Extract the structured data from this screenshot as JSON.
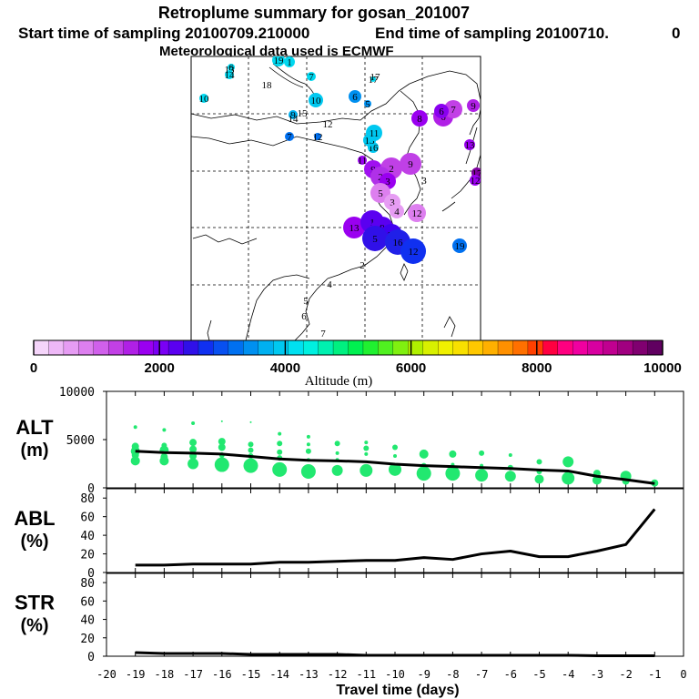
{
  "header": {
    "title": "Retroplume summary for gosan_201007",
    "start_time": "Start time of sampling 20100709.210000",
    "end_time": "End time of sampling 20100710.",
    "end_time_suffix": "0",
    "met_data": "Meteorological data used is ECMWF"
  },
  "colorbar": {
    "label": "Altitude (m)",
    "ticks": [
      0,
      2000,
      4000,
      6000,
      8000,
      10000
    ],
    "colors": [
      "#f5d5fa",
      "#eeb8f7",
      "#e69cf3",
      "#dd7fef",
      "#d060eb",
      "#c240e6",
      "#b020e6",
      "#9a00f0",
      "#7a00f5",
      "#5a00f0",
      "#3010e8",
      "#1030f0",
      "#0850f0",
      "#0070f0",
      "#0090f0",
      "#00b0f0",
      "#00c8f0",
      "#00e0f0",
      "#00f0e0",
      "#00f0b0",
      "#00f080",
      "#00f050",
      "#20f030",
      "#50f020",
      "#80f010",
      "#b0f000",
      "#d8f000",
      "#f0f000",
      "#f8e000",
      "#ffc800",
      "#ffb000",
      "#ff9000",
      "#ff7000",
      "#ff4000",
      "#ff0040",
      "#ff0080",
      "#f000a0",
      "#d800a0",
      "#c00090",
      "#a00080",
      "#800070",
      "#600060"
    ]
  },
  "map": {
    "markers": [
      {
        "label": "19",
        "color": "#00d8f0",
        "r": 7
      },
      {
        "label": "1",
        "color": "#00d8f0",
        "r": 6
      },
      {
        "label": "6",
        "color": "#00d8f0",
        "r": 4
      },
      {
        "label": "14",
        "color": "#00d8f0",
        "r": 5
      },
      {
        "label": "7",
        "color": "#00d8f0",
        "r": 5
      },
      {
        "label": "17",
        "color": "#00d8f0",
        "r": 3
      },
      {
        "label": "10",
        "color": "#00d8f0",
        "r": 5
      },
      {
        "label": "10",
        "color": "#00c8f0",
        "r": 8
      },
      {
        "label": "6",
        "color": "#0090f0",
        "r": 7
      },
      {
        "label": "5",
        "color": "#0090f0",
        "r": 4
      },
      {
        "label": "9",
        "color": "#00b0f0",
        "r": 5
      },
      {
        "label": "7",
        "color": "#0070f0",
        "r": 5
      },
      {
        "label": "12",
        "color": "#0070f0",
        "r": 4
      },
      {
        "label": "16",
        "color": "#00c8f0",
        "r": 6
      },
      {
        "label": "13",
        "color": "#00c8f0",
        "r": 7
      },
      {
        "label": "11",
        "color": "#00c8f0",
        "r": 9
      },
      {
        "label": "8",
        "color": "#9a00f0",
        "r": 9
      },
      {
        "label": "6",
        "color": "#b020e6",
        "r": 11
      },
      {
        "label": "7",
        "color": "#c240e6",
        "r": 10
      },
      {
        "label": "9",
        "color": "#b020e6",
        "r": 7
      },
      {
        "label": "10",
        "color": "#7a00f5",
        "r": 6
      },
      {
        "label": "6",
        "color": "#8a00f0",
        "r": 8
      },
      {
        "label": "13",
        "color": "#9a00f0",
        "r": 6
      },
      {
        "label": "17",
        "color": "#8000a0",
        "r": 6
      },
      {
        "label": "12",
        "color": "#9a00f0",
        "r": 6
      },
      {
        "label": "11",
        "color": "#9a00f0",
        "r": 5
      },
      {
        "label": "9",
        "color": "#a010f0",
        "r": 10
      },
      {
        "label": "2",
        "color": "#c040e6",
        "r": 12
      },
      {
        "label": "9",
        "color": "#c040e6",
        "r": 12
      },
      {
        "label": "2",
        "color": "#b030e8",
        "r": 11
      },
      {
        "label": "3",
        "color": "#9a00f0",
        "r": 9
      },
      {
        "label": "5",
        "color": "#dd7fef",
        "r": 11
      },
      {
        "label": "3",
        "color": "#e69cf3",
        "r": 9
      },
      {
        "label": "4",
        "color": "#e69cf3",
        "r": 8
      },
      {
        "label": "12",
        "color": "#dd7fef",
        "r": 10
      },
      {
        "label": "13",
        "color": "#9a00f0",
        "r": 12
      },
      {
        "label": "1",
        "color": "#5a00f0",
        "r": 13
      },
      {
        "label": "9",
        "color": "#5a00f0",
        "r": 12
      },
      {
        "label": "11",
        "color": "#4000f0",
        "r": 12
      },
      {
        "label": "5",
        "color": "#3010e8",
        "r": 14
      },
      {
        "label": "16",
        "color": "#2020e8",
        "r": 14
      },
      {
        "label": "12",
        "color": "#1030f0",
        "r": 14
      },
      {
        "label": "19",
        "color": "#0070f0",
        "r": 8
      }
    ],
    "texts": [
      {
        "label": "18",
        "color": "#00d8f0"
      },
      {
        "label": "15",
        "color": "#00d8f0"
      },
      {
        "label": "3",
        "color": "#000000"
      },
      {
        "label": "4",
        "color": "#000000"
      },
      {
        "label": "5",
        "color": "#000000"
      },
      {
        "label": "6",
        "color": "#000000"
      },
      {
        "label": "7",
        "color": "#000000"
      },
      {
        "label": "13",
        "color": "#000000"
      },
      {
        "label": "14",
        "color": "#000000"
      },
      {
        "label": "17",
        "color": "#000000"
      },
      {
        "label": "2",
        "color": "#000000"
      },
      {
        "label": "12",
        "color": "#000000"
      }
    ]
  },
  "chart_data": [
    {
      "type": "line",
      "name": "ALT",
      "ylabel": "ALT",
      "yunit": "(m)",
      "ylim": [
        0,
        10000
      ],
      "yticks": [
        0,
        5000,
        10000
      ],
      "x": [
        -19,
        -18,
        -17,
        -16,
        -15,
        -14,
        -13,
        -12,
        -11,
        -10,
        -9,
        -8,
        -7,
        -6,
        -5,
        -4,
        -3,
        -2,
        -1
      ],
      "series": [
        {
          "name": "mean altitude",
          "values": [
            3800,
            3650,
            3600,
            3500,
            3250,
            3000,
            2850,
            2800,
            2700,
            2450,
            2300,
            2200,
            2100,
            2000,
            1850,
            1750,
            1200,
            850,
            450
          ]
        }
      ],
      "scatter": [
        {
          "x": -19,
          "points": [
            [
              6300,
              2
            ],
            [
              4300,
              4
            ],
            [
              3800,
              5
            ],
            [
              3400,
              4
            ],
            [
              2800,
              5
            ]
          ]
        },
        {
          "x": -18,
          "points": [
            [
              6000,
              2
            ],
            [
              4400,
              3
            ],
            [
              3900,
              5
            ],
            [
              3200,
              4
            ],
            [
              2800,
              5
            ]
          ]
        },
        {
          "x": -17,
          "points": [
            [
              6700,
              2
            ],
            [
              4700,
              4
            ],
            [
              4000,
              4
            ],
            [
              3300,
              4
            ],
            [
              2500,
              6
            ]
          ]
        },
        {
          "x": -16,
          "points": [
            [
              6900,
              1
            ],
            [
              4800,
              4
            ],
            [
              4200,
              4
            ],
            [
              3400,
              3
            ],
            [
              2400,
              8
            ]
          ]
        },
        {
          "x": -15,
          "points": [
            [
              6800,
              1
            ],
            [
              4500,
              3
            ],
            [
              3900,
              3
            ],
            [
              3300,
              3
            ],
            [
              2300,
              8
            ]
          ]
        },
        {
          "x": -14,
          "points": [
            [
              5600,
              2
            ],
            [
              4600,
              3
            ],
            [
              3700,
              3
            ],
            [
              3100,
              3
            ],
            [
              1900,
              8
            ]
          ]
        },
        {
          "x": -13,
          "points": [
            [
              5300,
              2
            ],
            [
              4500,
              2
            ],
            [
              3800,
              3
            ],
            [
              2900,
              2
            ],
            [
              1700,
              8
            ]
          ]
        },
        {
          "x": -12,
          "points": [
            [
              4600,
              3
            ],
            [
              3600,
              2
            ],
            [
              2900,
              2
            ],
            [
              1800,
              6
            ]
          ]
        },
        {
          "x": -11,
          "points": [
            [
              4700,
              2
            ],
            [
              4100,
              3
            ],
            [
              3500,
              2
            ],
            [
              1800,
              7
            ]
          ]
        },
        {
          "x": -10,
          "points": [
            [
              4200,
              3
            ],
            [
              3300,
              2
            ],
            [
              1900,
              7
            ]
          ]
        },
        {
          "x": -9,
          "points": [
            [
              3500,
              5
            ],
            [
              2300,
              3
            ],
            [
              1500,
              8
            ]
          ]
        },
        {
          "x": -8,
          "points": [
            [
              3500,
              4
            ],
            [
              2400,
              2
            ],
            [
              1500,
              8
            ]
          ]
        },
        {
          "x": -7,
          "points": [
            [
              3600,
              3
            ],
            [
              2300,
              2
            ],
            [
              1300,
              7
            ]
          ]
        },
        {
          "x": -6,
          "points": [
            [
              3400,
              2
            ],
            [
              2100,
              3
            ],
            [
              1200,
              6
            ]
          ]
        },
        {
          "x": -5,
          "points": [
            [
              2700,
              3
            ],
            [
              1700,
              3
            ],
            [
              900,
              5
            ]
          ]
        },
        {
          "x": -4,
          "points": [
            [
              2700,
              6
            ],
            [
              1000,
              7
            ]
          ]
        },
        {
          "x": -3,
          "points": [
            [
              1500,
              4
            ],
            [
              800,
              5
            ]
          ]
        },
        {
          "x": -2,
          "points": [
            [
              1200,
              6
            ],
            [
              700,
              4
            ]
          ]
        },
        {
          "x": -1,
          "points": [
            [
              500,
              4
            ]
          ]
        }
      ]
    },
    {
      "type": "line",
      "name": "ABL",
      "ylabel": "ABL",
      "yunit": "(%)",
      "ylim": [
        0,
        90
      ],
      "yticks": [
        0,
        20,
        40,
        60,
        80
      ],
      "x": [
        -19,
        -18,
        -17,
        -16,
        -15,
        -14,
        -13,
        -12,
        -11,
        -10,
        -9,
        -8,
        -7,
        -6,
        -5,
        -4,
        -3,
        -2,
        -1
      ],
      "series": [
        {
          "name": "ABL fraction",
          "values": [
            8,
            8,
            9,
            9,
            9,
            11,
            11,
            12,
            13,
            13,
            16,
            14,
            20,
            23,
            17,
            17,
            23,
            30,
            68
          ]
        }
      ]
    },
    {
      "type": "line",
      "name": "STR",
      "ylabel": "STR",
      "yunit": "(%)",
      "ylim": [
        0,
        90
      ],
      "yticks": [
        0,
        20,
        40,
        60,
        80
      ],
      "xlabel": "Travel time (days)",
      "xticks": [
        -20,
        -19,
        -18,
        -17,
        -16,
        -15,
        -14,
        -13,
        -12,
        -11,
        -10,
        -9,
        -8,
        -7,
        -6,
        -5,
        -4,
        -3,
        -2,
        -1,
        0
      ],
      "x": [
        -19,
        -18,
        -17,
        -16,
        -15,
        -14,
        -13,
        -12,
        -11,
        -10,
        -9,
        -8,
        -7,
        -6,
        -5,
        -4,
        -3,
        -2,
        -1
      ],
      "series": [
        {
          "name": "stratospheric fraction",
          "values": [
            4,
            3,
            3,
            3,
            2,
            2,
            2,
            2,
            1,
            1,
            1,
            1,
            1,
            1,
            1,
            1,
            0.5,
            0.5,
            0.5
          ]
        }
      ]
    }
  ]
}
